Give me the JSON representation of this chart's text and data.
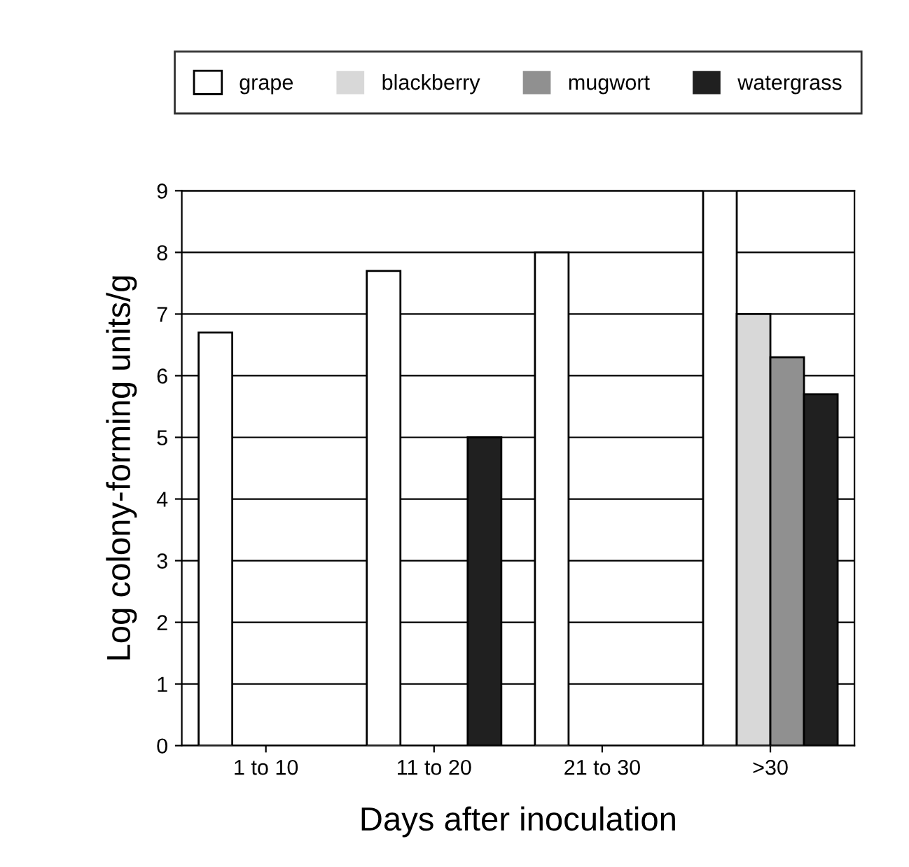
{
  "chart_data": {
    "type": "bar",
    "xlabel": "Days after inoculation",
    "ylabel": "Log colony-forming units/g",
    "categories": [
      "1 to 10",
      "11 to 20",
      "21 to 30",
      ">30"
    ],
    "series": [
      {
        "name": "grape",
        "color": "#ffffff",
        "values": [
          6.7,
          7.7,
          8.0,
          9.0
        ]
      },
      {
        "name": "blackberry",
        "color": "#d8d8d8",
        "values": [
          0,
          0,
          0,
          7.0
        ]
      },
      {
        "name": "mugwort",
        "color": "#909090",
        "values": [
          0,
          0,
          0,
          6.3
        ]
      },
      {
        "name": "watergrass",
        "color": "#202020",
        "values": [
          0,
          5.0,
          null,
          5.7
        ]
      }
    ],
    "ylim": [
      0,
      9
    ],
    "yticks": [
      0,
      1,
      2,
      3,
      4,
      5,
      6,
      7,
      8,
      9
    ],
    "grid": "y",
    "legend": "top"
  }
}
